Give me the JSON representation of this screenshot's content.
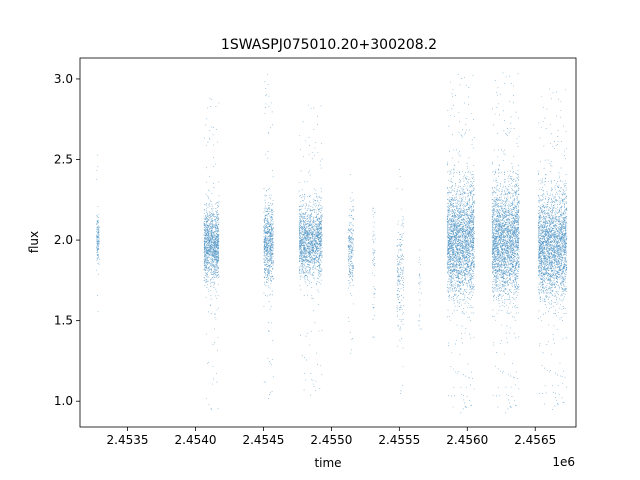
{
  "chart_data": {
    "type": "scatter",
    "title": "1SWASPJ075010.20+300208.2",
    "xlabel": "time",
    "ylabel": "flux",
    "x_offset_label": "1e6",
    "xlim": [
      2453150,
      2456800
    ],
    "ylim": [
      0.84,
      3.13
    ],
    "x_ticks": [
      2453500,
      2454000,
      2454500,
      2455000,
      2455500,
      2456000,
      2456500
    ],
    "x_tick_labels": [
      "2.4535",
      "2.4540",
      "2.4545",
      "2.4550",
      "2.4555",
      "2.4560",
      "2.4565"
    ],
    "y_ticks": [
      1.0,
      1.5,
      2.0,
      2.5,
      3.0
    ],
    "y_tick_labels": [
      "1.0",
      "1.5",
      "2.0",
      "2.5",
      "3.0"
    ],
    "grid": false,
    "marker_color": "#1f77b4",
    "seasons": [
      {
        "x_start": 2453270,
        "x_end": 2453290,
        "center": 2.0,
        "spread": 0.08,
        "y_min": 1.56,
        "y_max": 2.53,
        "n": 140
      },
      {
        "x_start": 2454060,
        "x_end": 2454170,
        "center": 1.97,
        "spread": 0.11,
        "y_min": 0.95,
        "y_max": 2.88,
        "n": 1300
      },
      {
        "x_start": 2454500,
        "x_end": 2454570,
        "center": 1.98,
        "spread": 0.12,
        "y_min": 1.02,
        "y_max": 3.03,
        "n": 750
      },
      {
        "x_start": 2454760,
        "x_end": 2454930,
        "center": 2.0,
        "spread": 0.11,
        "y_min": 1.04,
        "y_max": 2.84,
        "n": 1600
      },
      {
        "x_start": 2455120,
        "x_end": 2455160,
        "center": 1.95,
        "spread": 0.13,
        "y_min": 1.3,
        "y_max": 2.41,
        "n": 220
      },
      {
        "x_start": 2455300,
        "x_end": 2455320,
        "center": 1.9,
        "spread": 0.18,
        "y_min": 1.4,
        "y_max": 2.2,
        "n": 50
      },
      {
        "x_start": 2455480,
        "x_end": 2455530,
        "center": 1.75,
        "spread": 0.2,
        "y_min": 1.05,
        "y_max": 2.44,
        "n": 180
      },
      {
        "x_start": 2455640,
        "x_end": 2455660,
        "center": 1.7,
        "spread": 0.15,
        "y_min": 1.45,
        "y_max": 1.94,
        "n": 25
      },
      {
        "x_start": 2455850,
        "x_end": 2456050,
        "center": 2.0,
        "spread": 0.17,
        "y_min": 0.93,
        "y_max": 3.03,
        "n": 2800
      },
      {
        "x_start": 2456180,
        "x_end": 2456380,
        "center": 2.0,
        "spread": 0.17,
        "y_min": 0.93,
        "y_max": 3.04,
        "n": 2800
      },
      {
        "x_start": 2456520,
        "x_end": 2456730,
        "center": 1.97,
        "spread": 0.16,
        "y_min": 0.95,
        "y_max": 2.94,
        "n": 2600
      }
    ]
  }
}
